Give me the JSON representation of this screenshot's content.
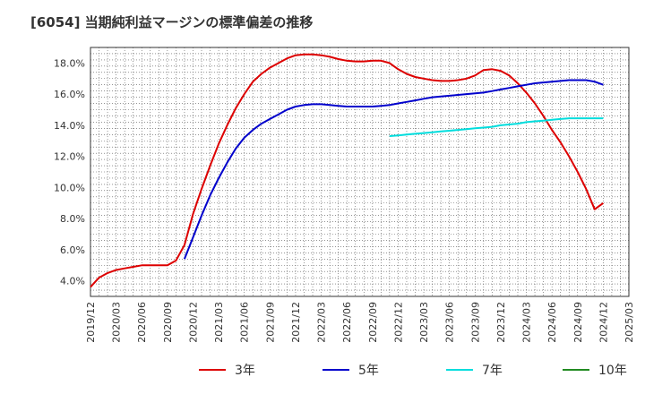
{
  "title": "[6054]  当期純利益マージンの標準偏差の推移",
  "chart_data": {
    "type": "line",
    "title": "[6054]  当期純利益マージンの標準偏差の推移",
    "x_ticks": [
      "2019/12",
      "2020/03",
      "2020/06",
      "2020/09",
      "2020/12",
      "2021/03",
      "2021/06",
      "2021/09",
      "2021/12",
      "2022/03",
      "2022/06",
      "2022/09",
      "2022/12",
      "2023/03",
      "2023/06",
      "2023/09",
      "2023/12",
      "2024/03",
      "2024/06",
      "2024/09",
      "2024/12",
      "2025/03"
    ],
    "y_ticks": [
      "4.0%",
      "6.0%",
      "8.0%",
      "10.0%",
      "12.0%",
      "14.0%",
      "16.0%",
      "18.0%"
    ],
    "xlim": [
      "2019/12",
      "2025/03"
    ],
    "ylim": [
      3.0,
      19.0
    ],
    "grid": true,
    "legend_position": "bottom",
    "series": [
      {
        "name": "3年",
        "color": "#dd0000",
        "points": [
          [
            "2019/12",
            3.6
          ],
          [
            "2020/01",
            4.2
          ],
          [
            "2020/02",
            4.5
          ],
          [
            "2020/03",
            4.7
          ],
          [
            "2020/04",
            4.8
          ],
          [
            "2020/05",
            4.9
          ],
          [
            "2020/06",
            5.0
          ],
          [
            "2020/07",
            5.0
          ],
          [
            "2020/08",
            5.0
          ],
          [
            "2020/09",
            5.0
          ],
          [
            "2020/10",
            5.3
          ],
          [
            "2020/11",
            6.3
          ],
          [
            "2020/12",
            8.3
          ],
          [
            "2021/01",
            9.9
          ],
          [
            "2021/02",
            11.4
          ],
          [
            "2021/03",
            12.8
          ],
          [
            "2021/04",
            14.0
          ],
          [
            "2021/05",
            15.1
          ],
          [
            "2021/06",
            16.0
          ],
          [
            "2021/07",
            16.8
          ],
          [
            "2021/08",
            17.3
          ],
          [
            "2021/09",
            17.7
          ],
          [
            "2021/10",
            18.0
          ],
          [
            "2021/11",
            18.3
          ],
          [
            "2021/12",
            18.5
          ],
          [
            "2022/01",
            18.55
          ],
          [
            "2022/02",
            18.55
          ],
          [
            "2022/03",
            18.5
          ],
          [
            "2022/04",
            18.4
          ],
          [
            "2022/05",
            18.25
          ],
          [
            "2022/06",
            18.15
          ],
          [
            "2022/07",
            18.1
          ],
          [
            "2022/08",
            18.1
          ],
          [
            "2022/09",
            18.15
          ],
          [
            "2022/10",
            18.15
          ],
          [
            "2022/11",
            18.0
          ],
          [
            "2022/12",
            17.6
          ],
          [
            "2023/01",
            17.3
          ],
          [
            "2023/02",
            17.1
          ],
          [
            "2023/03",
            17.0
          ],
          [
            "2023/04",
            16.9
          ],
          [
            "2023/05",
            16.85
          ],
          [
            "2023/06",
            16.85
          ],
          [
            "2023/07",
            16.9
          ],
          [
            "2023/08",
            17.0
          ],
          [
            "2023/09",
            17.2
          ],
          [
            "2023/10",
            17.55
          ],
          [
            "2023/11",
            17.6
          ],
          [
            "2023/12",
            17.5
          ],
          [
            "2024/01",
            17.2
          ],
          [
            "2024/02",
            16.7
          ],
          [
            "2024/03",
            16.1
          ],
          [
            "2024/04",
            15.4
          ],
          [
            "2024/05",
            14.6
          ],
          [
            "2024/06",
            13.7
          ],
          [
            "2024/07",
            12.9
          ],
          [
            "2024/08",
            12.0
          ],
          [
            "2024/09",
            11.0
          ],
          [
            "2024/10",
            9.9
          ],
          [
            "2024/11",
            8.6
          ],
          [
            "2024/12",
            9.0
          ]
        ]
      },
      {
        "name": "5年",
        "color": "#0000cc",
        "points": [
          [
            "2020/11",
            5.4
          ],
          [
            "2020/12",
            6.8
          ],
          [
            "2021/01",
            8.2
          ],
          [
            "2021/02",
            9.5
          ],
          [
            "2021/03",
            10.6
          ],
          [
            "2021/04",
            11.6
          ],
          [
            "2021/05",
            12.5
          ],
          [
            "2021/06",
            13.2
          ],
          [
            "2021/07",
            13.7
          ],
          [
            "2021/08",
            14.1
          ],
          [
            "2021/09",
            14.4
          ],
          [
            "2021/10",
            14.7
          ],
          [
            "2021/11",
            15.0
          ],
          [
            "2021/12",
            15.2
          ],
          [
            "2022/01",
            15.3
          ],
          [
            "2022/02",
            15.35
          ],
          [
            "2022/03",
            15.35
          ],
          [
            "2022/04",
            15.3
          ],
          [
            "2022/05",
            15.25
          ],
          [
            "2022/06",
            15.2
          ],
          [
            "2022/07",
            15.2
          ],
          [
            "2022/08",
            15.2
          ],
          [
            "2022/09",
            15.2
          ],
          [
            "2022/10",
            15.25
          ],
          [
            "2022/11",
            15.3
          ],
          [
            "2022/12",
            15.4
          ],
          [
            "2023/01",
            15.5
          ],
          [
            "2023/02",
            15.6
          ],
          [
            "2023/03",
            15.7
          ],
          [
            "2023/04",
            15.8
          ],
          [
            "2023/05",
            15.85
          ],
          [
            "2023/06",
            15.9
          ],
          [
            "2023/07",
            15.95
          ],
          [
            "2023/08",
            16.0
          ],
          [
            "2023/09",
            16.05
          ],
          [
            "2023/10",
            16.1
          ],
          [
            "2023/11",
            16.2
          ],
          [
            "2023/12",
            16.3
          ],
          [
            "2024/01",
            16.4
          ],
          [
            "2024/02",
            16.5
          ],
          [
            "2024/03",
            16.6
          ],
          [
            "2024/04",
            16.7
          ],
          [
            "2024/05",
            16.75
          ],
          [
            "2024/06",
            16.8
          ],
          [
            "2024/07",
            16.85
          ],
          [
            "2024/08",
            16.9
          ],
          [
            "2024/09",
            16.9
          ],
          [
            "2024/10",
            16.9
          ],
          [
            "2024/11",
            16.8
          ],
          [
            "2024/12",
            16.6
          ]
        ]
      },
      {
        "name": "7年",
        "color": "#00dddd",
        "points": [
          [
            "2022/11",
            13.3
          ],
          [
            "2022/12",
            13.35
          ],
          [
            "2023/01",
            13.4
          ],
          [
            "2023/02",
            13.45
          ],
          [
            "2023/03",
            13.5
          ],
          [
            "2023/04",
            13.55
          ],
          [
            "2023/05",
            13.6
          ],
          [
            "2023/06",
            13.65
          ],
          [
            "2023/07",
            13.7
          ],
          [
            "2023/08",
            13.75
          ],
          [
            "2023/09",
            13.8
          ],
          [
            "2023/10",
            13.85
          ],
          [
            "2023/11",
            13.9
          ],
          [
            "2023/12",
            14.0
          ],
          [
            "2024/01",
            14.05
          ],
          [
            "2024/02",
            14.1
          ],
          [
            "2024/03",
            14.2
          ],
          [
            "2024/04",
            14.25
          ],
          [
            "2024/05",
            14.3
          ],
          [
            "2024/06",
            14.35
          ],
          [
            "2024/07",
            14.4
          ],
          [
            "2024/08",
            14.45
          ],
          [
            "2024/09",
            14.45
          ],
          [
            "2024/10",
            14.45
          ],
          [
            "2024/11",
            14.45
          ],
          [
            "2024/12",
            14.45
          ]
        ]
      },
      {
        "name": "10年",
        "color": "#228b22",
        "points": []
      }
    ]
  }
}
